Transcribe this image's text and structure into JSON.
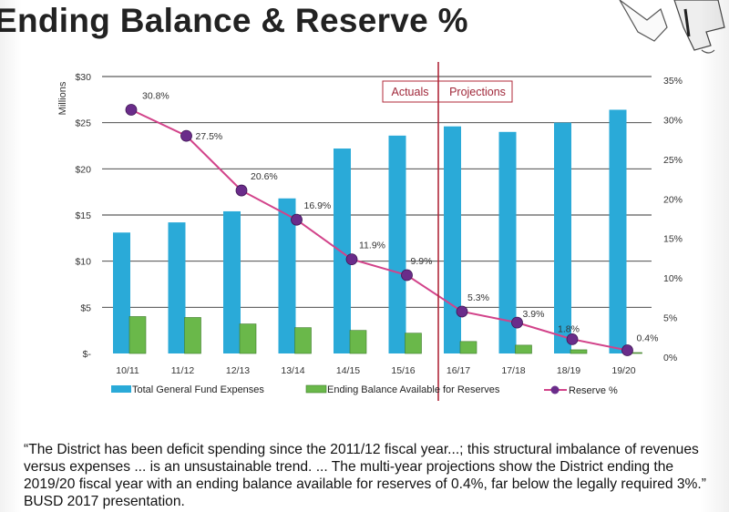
{
  "title": "Ending Balance & Reserve %",
  "chart_data": {
    "type": "bar",
    "categories": [
      "10/11",
      "11/12",
      "12/13",
      "13/14",
      "14/15",
      "15/16",
      "16/17",
      "17/18",
      "18/19",
      "19/20"
    ],
    "left_axis": {
      "label": "Millions",
      "ylim": [
        0,
        30
      ],
      "ticks": [
        "$-",
        "$5",
        "$10",
        "$15",
        "$20",
        "$25",
        "$30"
      ]
    },
    "right_axis": {
      "ylim": [
        0,
        35
      ],
      "ticks": [
        "0%",
        "5%",
        "10%",
        "15%",
        "20%",
        "25%",
        "30%",
        "35%"
      ]
    },
    "grid": true,
    "legend_position": "bottom",
    "series": [
      {
        "name": "Total General Fund Expenses",
        "type": "bar",
        "axis": "left",
        "color": "#2aaad8",
        "values": [
          13.1,
          14.2,
          15.4,
          16.8,
          22.2,
          23.6,
          24.6,
          24.0,
          25.0,
          26.4
        ]
      },
      {
        "name": "Ending Balance Available for Reserves",
        "type": "bar",
        "axis": "left",
        "color": "#6ab84a",
        "values": [
          4.0,
          3.9,
          3.2,
          2.8,
          2.5,
          2.2,
          1.3,
          0.9,
          0.4,
          0.1
        ]
      },
      {
        "name": "Reserve %",
        "type": "line",
        "axis": "right",
        "color": "#d2438a",
        "marker_color": "#6a2c8a",
        "values": [
          30.8,
          27.5,
          20.6,
          16.9,
          11.9,
          9.9,
          5.3,
          3.9,
          1.8,
          0.4
        ],
        "labels": [
          "30.8%",
          "27.5%",
          "20.6%",
          "16.9%",
          "11.9%",
          "9.9%",
          "5.3%",
          "3.9%",
          "1.8%",
          "0.4%"
        ]
      }
    ],
    "annotations": {
      "divider_between": [
        "15/16",
        "16/17"
      ],
      "actuals_label": "Actuals",
      "projections_label": "Projections",
      "divider_color": "#b0283a"
    }
  },
  "quote": "“The District has been deficit spending since the 2011/12 fiscal year...; this structural imbalance of revenues versus expenses ... is an unsustainable trend. ... The multi-year projections show the District ending the 2019/20 fiscal year with an ending balance available for reserves of 0.4%, far below the legally required 3%.” BUSD 2017 presentation."
}
